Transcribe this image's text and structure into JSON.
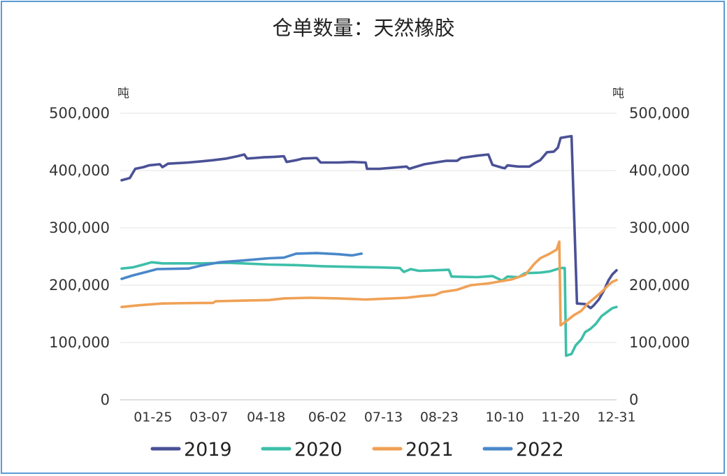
{
  "chart_data": {
    "type": "line",
    "title": "仓单数量：天然橡胶",
    "y_unit_left": "吨",
    "y_unit_right": "吨",
    "ylim": [
      0,
      500000
    ],
    "y_ticks": [
      "0",
      "100,000",
      "200,000",
      "300,000",
      "400,000",
      "500,000"
    ],
    "y_ticks_right": [
      "0",
      "100,000",
      "200,000",
      "300,000",
      "400,000",
      "500,000"
    ],
    "x_ticks": [
      "01-25",
      "03-07",
      "04-18",
      "06-02",
      "07-13",
      "08-23",
      "10-10",
      "11-20",
      "12-31"
    ],
    "grid": true,
    "legend_position": "bottom",
    "series": [
      {
        "name": "2019",
        "color": "#4a5196",
        "points": [
          [
            "01-02",
            383000
          ],
          [
            "01-08",
            387000
          ],
          [
            "01-12",
            403000
          ],
          [
            "01-18",
            406000
          ],
          [
            "01-22",
            409000
          ],
          [
            "01-30",
            411000
          ],
          [
            "02-01",
            406000
          ],
          [
            "02-05",
            412000
          ],
          [
            "02-20",
            414000
          ],
          [
            "03-01",
            416000
          ],
          [
            "03-10",
            418000
          ],
          [
            "03-20",
            421000
          ],
          [
            "03-28",
            425000
          ],
          [
            "04-02",
            428000
          ],
          [
            "04-04",
            421000
          ],
          [
            "04-10",
            422000
          ],
          [
            "04-16",
            423000
          ],
          [
            "04-25",
            424000
          ],
          [
            "05-01",
            425000
          ],
          [
            "05-03",
            415000
          ],
          [
            "05-10",
            418000
          ],
          [
            "05-15",
            421000
          ],
          [
            "05-25",
            422000
          ],
          [
            "05-28",
            414000
          ],
          [
            "06-10",
            414000
          ],
          [
            "06-20",
            415000
          ],
          [
            "06-30",
            414000
          ],
          [
            "07-01",
            403000
          ],
          [
            "07-10",
            403000
          ],
          [
            "07-20",
            405000
          ],
          [
            "07-30",
            407000
          ],
          [
            "08-01",
            403000
          ],
          [
            "08-05",
            406000
          ],
          [
            "08-12",
            411000
          ],
          [
            "08-20",
            414000
          ],
          [
            "08-28",
            417000
          ],
          [
            "09-05",
            417000
          ],
          [
            "09-08",
            422000
          ],
          [
            "09-20",
            426000
          ],
          [
            "09-28",
            428000
          ],
          [
            "10-01",
            410000
          ],
          [
            "10-08",
            405000
          ],
          [
            "10-10",
            404000
          ],
          [
            "10-12",
            409000
          ],
          [
            "10-20",
            407000
          ],
          [
            "10-28",
            407000
          ],
          [
            "11-01",
            413000
          ],
          [
            "11-05",
            418000
          ],
          [
            "11-10",
            432000
          ],
          [
            "11-15",
            433000
          ],
          [
            "11-18",
            440000
          ],
          [
            "11-20",
            457000
          ],
          [
            "11-25",
            459000
          ],
          [
            "11-28",
            460000
          ],
          [
            "12-02",
            168000
          ],
          [
            "12-08",
            167000
          ],
          [
            "12-12",
            160000
          ],
          [
            "12-14",
            164000
          ],
          [
            "12-18",
            175000
          ],
          [
            "12-22",
            192000
          ],
          [
            "12-25",
            208000
          ],
          [
            "12-28",
            219000
          ],
          [
            "12-31",
            226000
          ]
        ]
      },
      {
        "name": "2020",
        "color": "#3dbfa9",
        "points": [
          [
            "01-02",
            229000
          ],
          [
            "01-10",
            231000
          ],
          [
            "01-18",
            236000
          ],
          [
            "01-24",
            240000
          ],
          [
            "02-01",
            238000
          ],
          [
            "03-01",
            238000
          ],
          [
            "03-20",
            239000
          ],
          [
            "04-01",
            238000
          ],
          [
            "04-20",
            236000
          ],
          [
            "05-10",
            235000
          ],
          [
            "05-30",
            233000
          ],
          [
            "06-20",
            232000
          ],
          [
            "07-10",
            231000
          ],
          [
            "07-25",
            230000
          ],
          [
            "07-28",
            223000
          ],
          [
            "08-02",
            228000
          ],
          [
            "08-08",
            225000
          ],
          [
            "08-20",
            226000
          ],
          [
            "08-30",
            227000
          ],
          [
            "09-01",
            215000
          ],
          [
            "09-20",
            214000
          ],
          [
            "10-01",
            216000
          ],
          [
            "10-08",
            208000
          ],
          [
            "10-12",
            215000
          ],
          [
            "10-20",
            214000
          ],
          [
            "10-25",
            221000
          ],
          [
            "11-05",
            222000
          ],
          [
            "11-12",
            224000
          ],
          [
            "11-20",
            230000
          ],
          [
            "11-23",
            230000
          ],
          [
            "11-24",
            77000
          ],
          [
            "11-28",
            80000
          ],
          [
            "12-01",
            95000
          ],
          [
            "12-05",
            105000
          ],
          [
            "12-08",
            118000
          ],
          [
            "12-12",
            124000
          ],
          [
            "12-16",
            133000
          ],
          [
            "12-20",
            146000
          ],
          [
            "12-24",
            153000
          ],
          [
            "12-28",
            160000
          ],
          [
            "12-31",
            162000
          ]
        ]
      },
      {
        "name": "2021",
        "color": "#f0a156",
        "points": [
          [
            "01-02",
            162000
          ],
          [
            "01-15",
            165000
          ],
          [
            "02-01",
            168000
          ],
          [
            "03-01",
            169000
          ],
          [
            "03-10",
            169000
          ],
          [
            "03-12",
            172000
          ],
          [
            "04-01",
            173000
          ],
          [
            "04-20",
            174000
          ],
          [
            "05-01",
            177000
          ],
          [
            "05-20",
            178000
          ],
          [
            "06-10",
            177000
          ],
          [
            "06-30",
            175000
          ],
          [
            "07-10",
            176000
          ],
          [
            "07-30",
            178000
          ],
          [
            "08-10",
            181000
          ],
          [
            "08-20",
            183000
          ],
          [
            "08-25",
            188000
          ],
          [
            "09-05",
            192000
          ],
          [
            "09-15",
            200000
          ],
          [
            "09-28",
            203000
          ],
          [
            "10-05",
            206000
          ],
          [
            "10-15",
            210000
          ],
          [
            "10-25",
            218000
          ],
          [
            "11-01",
            238000
          ],
          [
            "11-05",
            247000
          ],
          [
            "11-12",
            255000
          ],
          [
            "11-17",
            262000
          ],
          [
            "11-19",
            276000
          ],
          [
            "11-20",
            130000
          ],
          [
            "11-24",
            137000
          ],
          [
            "11-30",
            148000
          ],
          [
            "12-05",
            155000
          ],
          [
            "12-10",
            168000
          ],
          [
            "12-15",
            178000
          ],
          [
            "12-20",
            188000
          ],
          [
            "12-25",
            200000
          ],
          [
            "12-28",
            206000
          ],
          [
            "12-31",
            209000
          ]
        ]
      },
      {
        "name": "2022",
        "color": "#4a88c9",
        "points": [
          [
            "01-02",
            211000
          ],
          [
            "01-10",
            217000
          ],
          [
            "01-20",
            223000
          ],
          [
            "01-28",
            228000
          ],
          [
            "02-20",
            229000
          ],
          [
            "03-01",
            234000
          ],
          [
            "03-15",
            240000
          ],
          [
            "04-01",
            243000
          ],
          [
            "04-20",
            247000
          ],
          [
            "05-01",
            248000
          ],
          [
            "05-10",
            255000
          ],
          [
            "05-25",
            256000
          ],
          [
            "06-10",
            254000
          ],
          [
            "06-20",
            252000
          ],
          [
            "06-27",
            255000
          ]
        ]
      }
    ]
  }
}
